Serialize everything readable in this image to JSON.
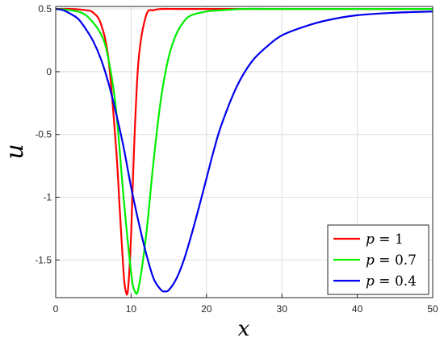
{
  "chart_data": {
    "type": "line",
    "title": "",
    "xlabel": "x",
    "ylabel": "u",
    "xlim": [
      0,
      50
    ],
    "ylim": [
      -1.8,
      0.52
    ],
    "xticks": [
      0,
      10,
      20,
      30,
      40,
      50
    ],
    "xtick_labels": [
      "0",
      "10",
      "20",
      "30",
      "40",
      "50"
    ],
    "yticks": [
      0.5,
      0,
      -0.5,
      -1,
      -1.5
    ],
    "ytick_labels": [
      "0.5",
      "0",
      "-0.5",
      "-1",
      "-1.5"
    ],
    "grid": true,
    "legend_position": "bottom-right",
    "series": [
      {
        "name": "p = 1",
        "legend_var": "p",
        "legend_value": "1",
        "color": "#ff0000",
        "x": [
          0,
          2,
          4,
          5,
          6,
          7,
          8,
          8.5,
          9,
          9.3,
          9.6,
          10,
          10.4,
          11,
          12,
          13,
          14,
          16,
          20,
          50
        ],
        "y": [
          0.5,
          0.5,
          0.49,
          0.47,
          0.38,
          0.1,
          -0.6,
          -1.1,
          -1.6,
          -1.75,
          -1.73,
          -1.3,
          -0.6,
          0.1,
          0.45,
          0.49,
          0.5,
          0.5,
          0.5,
          0.5
        ]
      },
      {
        "name": "p = 0.7",
        "legend_var": "p",
        "legend_value": "0.7",
        "color": "#00ee00",
        "x": [
          0,
          2,
          4,
          6,
          7,
          8,
          9,
          10,
          10.5,
          11,
          12,
          13,
          14,
          15,
          16,
          17,
          18,
          20,
          22,
          25,
          30,
          50
        ],
        "y": [
          0.5,
          0.49,
          0.45,
          0.3,
          0.1,
          -0.3,
          -1.0,
          -1.6,
          -1.75,
          -1.72,
          -1.3,
          -0.7,
          -0.2,
          0.12,
          0.3,
          0.4,
          0.45,
          0.48,
          0.49,
          0.5,
          0.5,
          0.5
        ]
      },
      {
        "name": "p = 0.4",
        "legend_var": "p",
        "legend_value": "0.4",
        "color": "#0000ee",
        "x": [
          0,
          1,
          2,
          3,
          4,
          5,
          6,
          7,
          8,
          9,
          10,
          11,
          12,
          13,
          14,
          14.5,
          15,
          16,
          17,
          18,
          19,
          20,
          21,
          22,
          24,
          26,
          28,
          30,
          33,
          36,
          40,
          45,
          50
        ],
        "y": [
          0.5,
          0.49,
          0.46,
          0.42,
          0.34,
          0.24,
          0.1,
          -0.09,
          -0.33,
          -0.6,
          -0.92,
          -1.2,
          -1.45,
          -1.65,
          -1.74,
          -1.75,
          -1.74,
          -1.65,
          -1.5,
          -1.3,
          -1.08,
          -0.85,
          -0.62,
          -0.42,
          -0.12,
          0.08,
          0.2,
          0.29,
          0.36,
          0.41,
          0.45,
          0.47,
          0.48
        ]
      }
    ]
  }
}
